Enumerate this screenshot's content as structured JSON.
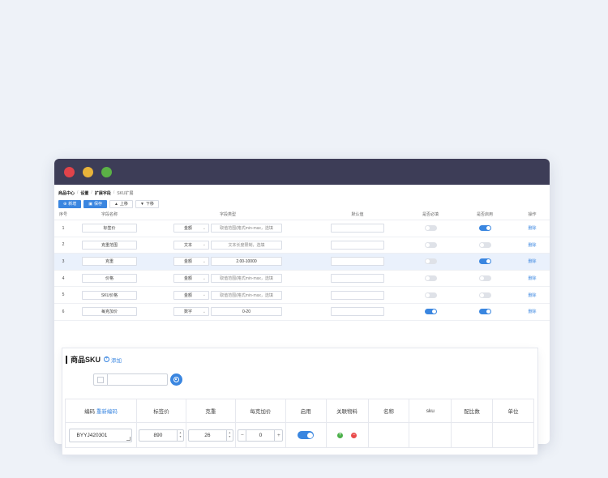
{
  "breadcrumb": [
    "商品中心",
    "设置",
    "扩展字段",
    "SKU扩展"
  ],
  "toolbar": {
    "add": "新增",
    "save": "保存",
    "up": "上移",
    "down": "下移"
  },
  "grid": {
    "headers": [
      "序号",
      "字段名称",
      "字段类型",
      "默认值",
      "是否必填",
      "是否启用",
      "操作"
    ],
    "rows": [
      {
        "no": "1",
        "name": "标签价",
        "type": "金额",
        "range": "取值范围(格式min-max，选填",
        "required": false,
        "enabled": true,
        "action": "删除"
      },
      {
        "no": "2",
        "name": "克重范围",
        "type": "文本",
        "range": "文本长度限制，选填",
        "required": false,
        "enabled": false,
        "action": "删除"
      },
      {
        "no": "3",
        "name": "克重",
        "type": "金额",
        "range": "2.00-10000",
        "required": false,
        "enabled": true,
        "action": "删除"
      },
      {
        "no": "4",
        "name": "价格",
        "type": "金额",
        "range": "取值范围(格式min-max，选填",
        "required": false,
        "enabled": false,
        "action": "删除"
      },
      {
        "no": "5",
        "name": "SKU价格",
        "type": "金额",
        "range": "取值范围(格式min-max，选填",
        "required": false,
        "enabled": false,
        "action": "删除"
      },
      {
        "no": "6",
        "name": "每克加价",
        "type": "数字",
        "range": "0-20",
        "required": true,
        "enabled": true,
        "action": "删除"
      }
    ]
  },
  "sku": {
    "title": "商品SKU",
    "add": "添加",
    "headers": {
      "code": "编码",
      "regen": "重新编码",
      "tag_price": "标签价",
      "weight": "克重",
      "per_gram": "每克加价",
      "enable": "启用",
      "material": "关联物料",
      "name": "名称",
      "sku": "sku",
      "ratio": "配比数",
      "unit": "单位"
    },
    "row": {
      "code": "BYYJ420301",
      "tag_price": "890",
      "weight": "26",
      "per_gram": "0",
      "enabled": true
    }
  },
  "colors": {
    "accent": "#3a86e0",
    "titlebar": "#3d3d57",
    "background": "#eef2f8"
  }
}
